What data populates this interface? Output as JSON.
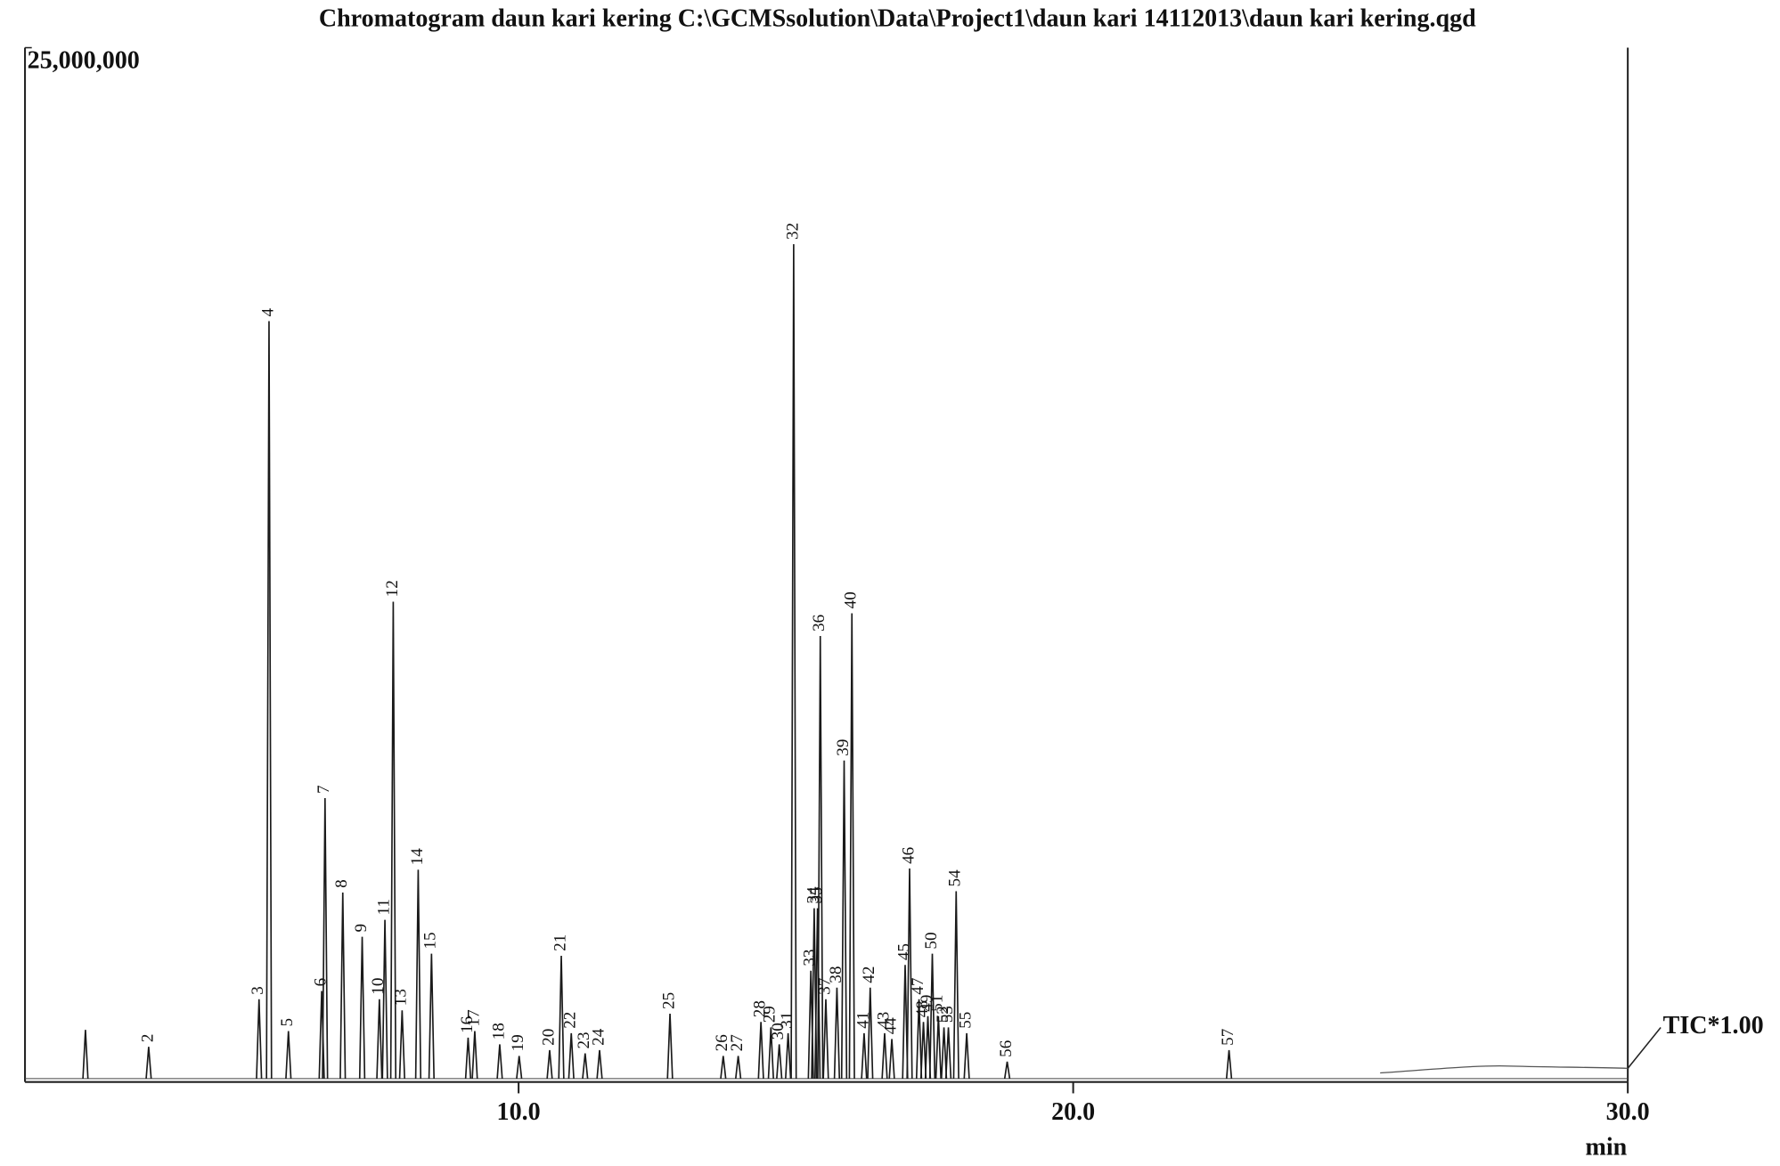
{
  "chart_data": {
    "type": "chromatogram",
    "title": "Chromatogram daun kari kering C:\\GCMSsolution\\Data\\Project1\\daun kari 14112013\\daun kari kering.qgd",
    "x_label": "min",
    "annotation": "TIC*1.00",
    "color": "#1a1a1a",
    "xlim": [
      1.1,
      30.0
    ],
    "xticks": [
      {
        "value": 10,
        "label": "10.0"
      },
      {
        "value": 20,
        "label": "20.0"
      },
      {
        "value": 30,
        "label": "30.0"
      }
    ],
    "ylim": [
      0,
      25000000
    ],
    "yticks": [
      {
        "value": 25000000,
        "label": "25,000,000"
      }
    ],
    "grid": false,
    "labels": [
      null,
      "2",
      "3",
      "4",
      "5",
      "6",
      "7",
      "8",
      "9",
      "10",
      "11",
      "12",
      "13",
      "14",
      "15",
      "16",
      "17",
      "18",
      "19",
      "20",
      "21",
      "22",
      "23",
      "24",
      "25",
      "26",
      "27",
      "28",
      "29",
      "30",
      "31",
      "32",
      "33",
      "34",
      "35",
      "36",
      "37",
      "38",
      "39",
      "40",
      "41",
      "42",
      "43",
      "44",
      "45",
      "46",
      "47",
      "48",
      "49",
      "50",
      "51",
      "52",
      "53",
      "54",
      "55",
      "56",
      "57"
    ],
    "x": [
      2.19,
      3.33,
      5.32,
      5.5,
      5.85,
      6.45,
      6.51,
      6.83,
      7.18,
      7.49,
      7.59,
      7.74,
      7.9,
      8.19,
      8.43,
      9.09,
      9.21,
      9.66,
      10.01,
      10.56,
      10.77,
      10.95,
      11.2,
      11.46,
      12.73,
      13.69,
      13.96,
      14.37,
      14.55,
      14.7,
      14.86,
      14.96,
      15.27,
      15.33,
      15.39,
      15.44,
      15.54,
      15.74,
      15.87,
      16.01,
      16.23,
      16.34,
      16.6,
      16.73,
      16.97,
      17.05,
      17.22,
      17.3,
      17.38,
      17.46,
      17.57,
      17.67,
      17.75,
      17.89,
      18.08,
      18.81,
      22.81
    ],
    "values": [
      1260000,
      850000,
      2000000,
      18390000,
      1230000,
      2200000,
      6860000,
      4580000,
      3510000,
      2000000,
      3920000,
      11610000,
      1730000,
      5130000,
      3100000,
      1070000,
      1230000,
      910000,
      630000,
      770000,
      3050000,
      1180000,
      690000,
      770000,
      1650000,
      630000,
      630000,
      1450000,
      1320000,
      910000,
      1180000,
      20250000,
      2690000,
      4200000,
      4200000,
      10780000,
      2000000,
      2280000,
      7770000,
      11330000,
      1180000,
      2280000,
      1180000,
      1040000,
      2830000,
      5160000,
      2000000,
      1450000,
      1590000,
      3100000,
      1590000,
      1320000,
      1320000,
      4610000,
      1180000,
      490000,
      770000
    ]
  }
}
